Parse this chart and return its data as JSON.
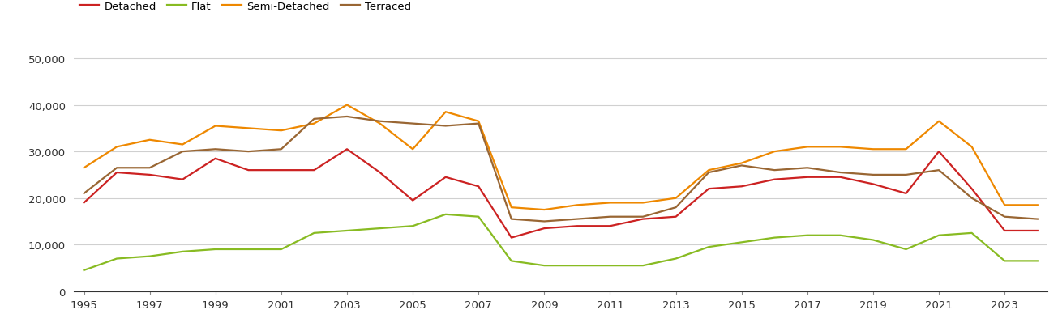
{
  "years": [
    1995,
    1996,
    1997,
    1998,
    1999,
    2000,
    2001,
    2002,
    2003,
    2004,
    2005,
    2006,
    2007,
    2008,
    2009,
    2010,
    2011,
    2012,
    2013,
    2014,
    2015,
    2016,
    2017,
    2018,
    2019,
    2020,
    2021,
    2022,
    2023,
    2024
  ],
  "detached": [
    19000,
    25500,
    25000,
    24000,
    28500,
    26000,
    26000,
    26000,
    30500,
    25500,
    19500,
    24500,
    22500,
    11500,
    13500,
    14000,
    14000,
    15500,
    16000,
    22000,
    22500,
    24000,
    24500,
    24500,
    23000,
    21000,
    30000,
    22000,
    13000,
    13000
  ],
  "flat": [
    4500,
    7000,
    7500,
    8500,
    9000,
    9000,
    9000,
    12500,
    13000,
    13500,
    14000,
    16500,
    16000,
    6500,
    5500,
    5500,
    5500,
    5500,
    7000,
    9500,
    10500,
    11500,
    12000,
    12000,
    11000,
    9000,
    12000,
    12500,
    6500,
    6500
  ],
  "semi_detached": [
    26500,
    31000,
    32500,
    31500,
    35500,
    35000,
    34500,
    36000,
    40000,
    36000,
    30500,
    38500,
    36500,
    18000,
    17500,
    18500,
    19000,
    19000,
    20000,
    26000,
    27500,
    30000,
    31000,
    31000,
    30500,
    30500,
    36500,
    31000,
    18500,
    18500
  ],
  "terraced": [
    21000,
    26500,
    26500,
    30000,
    30500,
    30000,
    30500,
    37000,
    37500,
    36500,
    36000,
    35500,
    36000,
    15500,
    15000,
    15500,
    16000,
    16000,
    18000,
    25500,
    27000,
    26000,
    26500,
    25500,
    25000,
    25000,
    26000,
    20000,
    16000,
    15500
  ],
  "colors": {
    "detached": "#cc2222",
    "flat": "#88bb22",
    "semi_detached": "#ee8800",
    "terraced": "#996633"
  },
  "ylim": [
    0,
    52000
  ],
  "yticks": [
    0,
    10000,
    20000,
    30000,
    40000,
    50000
  ],
  "xticks": [
    1995,
    1997,
    1999,
    2001,
    2003,
    2005,
    2007,
    2009,
    2011,
    2013,
    2015,
    2017,
    2019,
    2021,
    2023
  ],
  "legend_labels": [
    "Detached",
    "Flat",
    "Semi-Detached",
    "Terraced"
  ],
  "background_color": "#ffffff",
  "grid_color": "#d0d0d0",
  "line_width": 1.6
}
